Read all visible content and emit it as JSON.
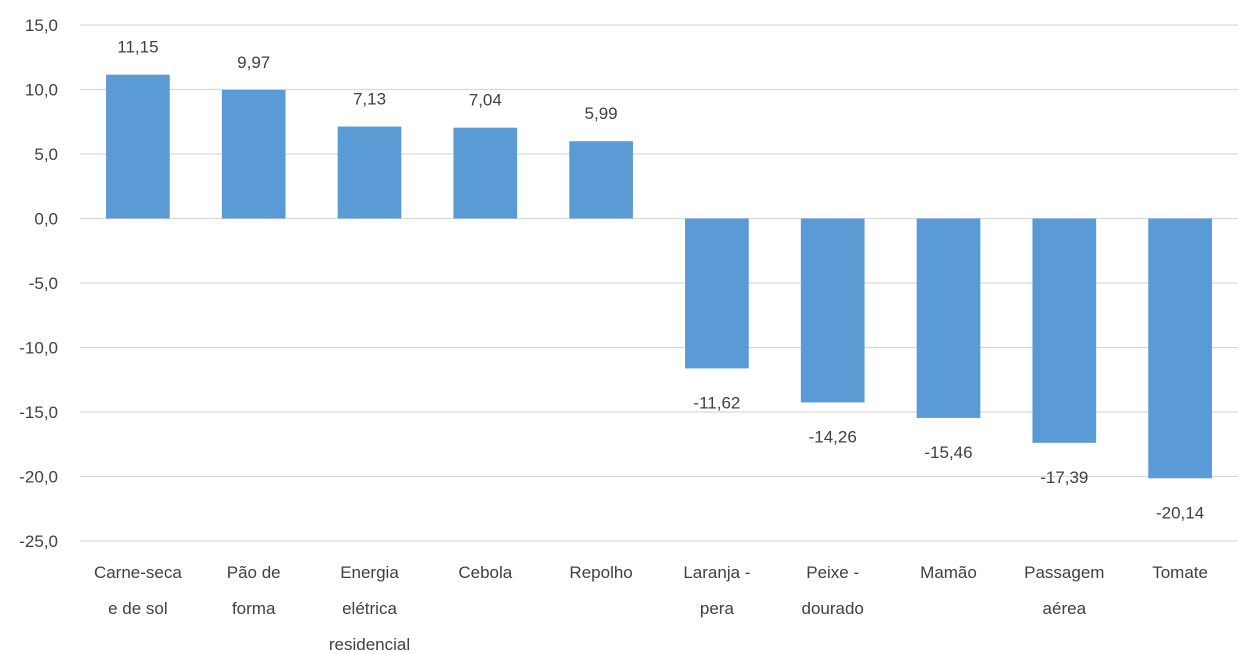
{
  "chart_data": {
    "type": "bar",
    "title": "",
    "xlabel": "",
    "ylabel": "",
    "ylim": [
      -25,
      15
    ],
    "y_tick_step": 5,
    "y_tick_labels": [
      "15,0",
      "10,0",
      "5,0",
      "0,0",
      "-5,0",
      "-10,0",
      "-15,0",
      "-20,0",
      "-25,0"
    ],
    "grid": true,
    "legend": "none",
    "bar_color": "#5b9bd5",
    "grid_color": "#d9d9d9",
    "categories": [
      [
        "Carne-seca",
        "e de sol"
      ],
      [
        "Pão de",
        "forma"
      ],
      [
        "Energia",
        "elétrica",
        "residencial"
      ],
      [
        "Cebola"
      ],
      [
        "Repolho"
      ],
      [
        "Laranja -",
        "pera"
      ],
      [
        "Peixe -",
        "dourado"
      ],
      [
        "Mamão"
      ],
      [
        "Passagem",
        "aérea"
      ],
      [
        "Tomate"
      ]
    ],
    "values": [
      11.15,
      9.97,
      7.13,
      7.04,
      5.99,
      -11.62,
      -14.26,
      -15.46,
      -17.39,
      -20.14
    ],
    "data_labels": [
      "11,15",
      "9,97",
      "7,13",
      "7,04",
      "5,99",
      "-11,62",
      "-14,26",
      "-15,46",
      "-17,39",
      "-20,14"
    ]
  }
}
